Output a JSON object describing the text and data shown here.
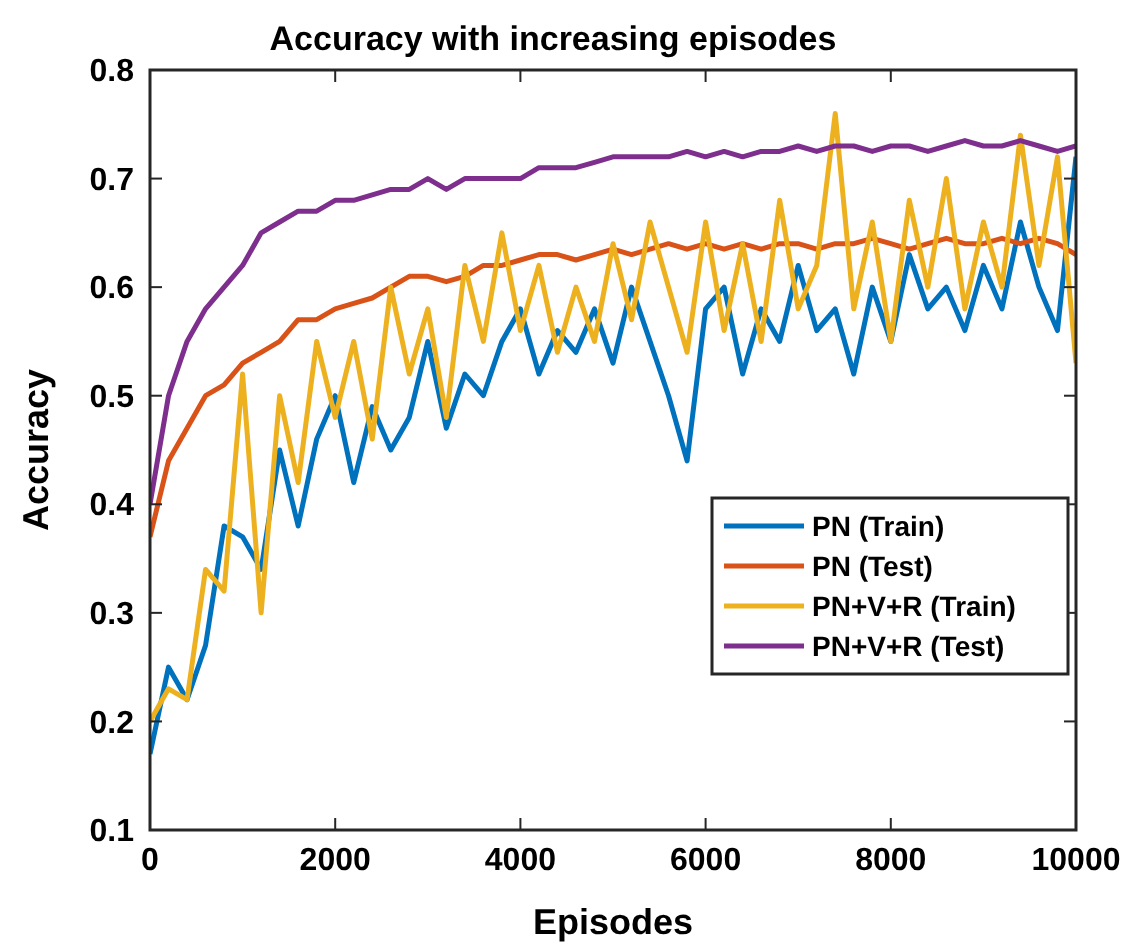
{
  "chart_data": {
    "type": "line",
    "title": "Accuracy with increasing episodes",
    "xlabel": "Episodes",
    "ylabel": "Accuracy",
    "x": [
      0,
      200,
      400,
      600,
      800,
      1000,
      1200,
      1400,
      1600,
      1800,
      2000,
      2200,
      2400,
      2600,
      2800,
      3000,
      3200,
      3400,
      3600,
      3800,
      4000,
      4200,
      4400,
      4600,
      4800,
      5000,
      5200,
      5400,
      5600,
      5800,
      6000,
      6200,
      6400,
      6600,
      6800,
      7000,
      7200,
      7400,
      7600,
      7800,
      8000,
      8200,
      8400,
      8600,
      8800,
      9000,
      9200,
      9400,
      9600,
      9800,
      10000
    ],
    "series": [
      {
        "name": "PN (Train)",
        "color": "#0072bd",
        "values": [
          0.17,
          0.25,
          0.22,
          0.27,
          0.38,
          0.37,
          0.34,
          0.45,
          0.38,
          0.46,
          0.5,
          0.42,
          0.49,
          0.45,
          0.48,
          0.55,
          0.47,
          0.52,
          0.5,
          0.55,
          0.58,
          0.52,
          0.56,
          0.54,
          0.58,
          0.53,
          0.6,
          0.55,
          0.5,
          0.44,
          0.58,
          0.6,
          0.52,
          0.58,
          0.55,
          0.62,
          0.56,
          0.58,
          0.52,
          0.6,
          0.55,
          0.63,
          0.58,
          0.6,
          0.56,
          0.62,
          0.58,
          0.66,
          0.6,
          0.56,
          0.72
        ]
      },
      {
        "name": "PN (Test)",
        "color": "#d95319",
        "values": [
          0.37,
          0.44,
          0.47,
          0.5,
          0.51,
          0.53,
          0.54,
          0.55,
          0.57,
          0.57,
          0.58,
          0.585,
          0.59,
          0.6,
          0.61,
          0.61,
          0.605,
          0.61,
          0.62,
          0.62,
          0.625,
          0.63,
          0.63,
          0.625,
          0.63,
          0.635,
          0.63,
          0.635,
          0.64,
          0.635,
          0.64,
          0.635,
          0.64,
          0.635,
          0.64,
          0.64,
          0.635,
          0.64,
          0.64,
          0.645,
          0.64,
          0.635,
          0.64,
          0.645,
          0.64,
          0.64,
          0.645,
          0.64,
          0.645,
          0.64,
          0.63
        ]
      },
      {
        "name": "PN+V+R (Train)",
        "color": "#edb120",
        "values": [
          0.2,
          0.23,
          0.22,
          0.34,
          0.32,
          0.52,
          0.3,
          0.5,
          0.42,
          0.55,
          0.48,
          0.55,
          0.46,
          0.6,
          0.52,
          0.58,
          0.48,
          0.62,
          0.55,
          0.65,
          0.56,
          0.62,
          0.54,
          0.6,
          0.55,
          0.64,
          0.57,
          0.66,
          0.6,
          0.54,
          0.66,
          0.56,
          0.64,
          0.55,
          0.68,
          0.58,
          0.62,
          0.76,
          0.58,
          0.66,
          0.55,
          0.68,
          0.6,
          0.7,
          0.58,
          0.66,
          0.6,
          0.74,
          0.62,
          0.72,
          0.53
        ]
      },
      {
        "name": "PN+V+R (Test)",
        "color": "#7e2f8e",
        "values": [
          0.4,
          0.5,
          0.55,
          0.58,
          0.6,
          0.62,
          0.65,
          0.66,
          0.67,
          0.67,
          0.68,
          0.68,
          0.685,
          0.69,
          0.69,
          0.7,
          0.69,
          0.7,
          0.7,
          0.7,
          0.7,
          0.71,
          0.71,
          0.71,
          0.715,
          0.72,
          0.72,
          0.72,
          0.72,
          0.725,
          0.72,
          0.725,
          0.72,
          0.725,
          0.725,
          0.73,
          0.725,
          0.73,
          0.73,
          0.725,
          0.73,
          0.73,
          0.725,
          0.73,
          0.735,
          0.73,
          0.73,
          0.735,
          0.73,
          0.725,
          0.73
        ]
      }
    ],
    "xlim": [
      0,
      10000
    ],
    "xticks": [
      0,
      2000,
      4000,
      6000,
      8000,
      10000
    ],
    "ylim": [
      0.1,
      0.8
    ],
    "yticks": [
      0.1,
      0.2,
      0.3,
      0.4,
      0.5,
      0.6,
      0.7,
      0.8
    ],
    "grid": false,
    "legend": "bottom right",
    "line_style": "solid",
    "marker": "none"
  }
}
